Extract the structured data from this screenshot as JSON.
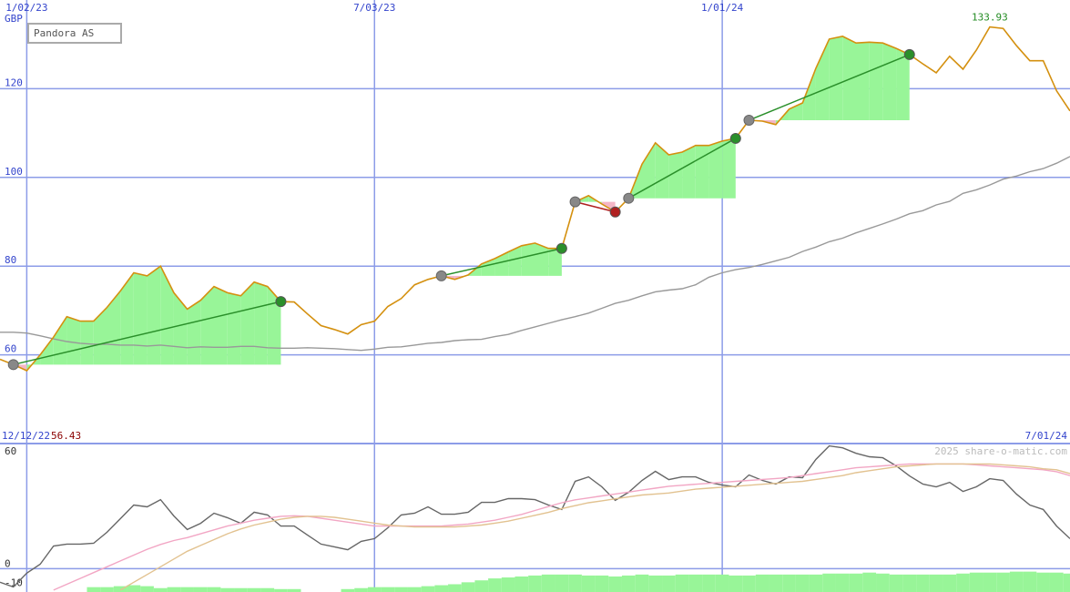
{
  "chart_data": [
    {
      "type": "line",
      "unit": "GBP",
      "categories": [
        null,
        null,
        "1/02/23",
        null,
        null,
        null,
        null,
        null,
        null,
        null,
        null,
        null,
        null,
        null,
        null,
        null,
        null,
        null,
        null,
        null,
        null,
        null,
        null,
        null,
        null,
        null,
        null,
        null,
        "7/03/23",
        null,
        null,
        null,
        null,
        null,
        null,
        null,
        null,
        null,
        null,
        null,
        null,
        null,
        null,
        null,
        null,
        null,
        null,
        null,
        null,
        null,
        null,
        null,
        null,
        null,
        "1/01/24",
        null,
        null,
        null,
        null,
        null,
        null,
        null,
        null,
        null,
        null,
        null,
        null,
        null,
        null,
        null,
        null,
        null,
        null,
        null,
        null,
        null,
        null,
        null,
        null,
        null,
        null
      ],
      "series": [
        {
          "name": "Pandora AS",
          "color": "#d4900f",
          "values": [
            59,
            57.8,
            56.43,
            60,
            64,
            68.6,
            67.6,
            67.6,
            70.7,
            74.4,
            78.5,
            77.8,
            80,
            74,
            70.3,
            72.3,
            75.4,
            74,
            73.3,
            76.4,
            75.4,
            72,
            71.9,
            69.2,
            66.6,
            65.7,
            64.7,
            66.8,
            67.6,
            70.9,
            72.7,
            75.8,
            77,
            77.8,
            77,
            78,
            80.5,
            81.7,
            83.2,
            84.6,
            85.2,
            84,
            84,
            94.5,
            95.9,
            94,
            92.2,
            95.3,
            103,
            107.8,
            105.1,
            105.7,
            107.2,
            107.2,
            108.2,
            108.8,
            112.9,
            112.7,
            111.9,
            115.4,
            116.8,
            124.6,
            131.2,
            131.8,
            130.3,
            130.5,
            130.3,
            129.1,
            127.7,
            125.6,
            123.6,
            127.3,
            124.4,
            128.7,
            133.93,
            133.6,
            129.7,
            126.3,
            126.3,
            119.5,
            115
          ]
        },
        {
          "color": "#999999",
          "values": [
            65.1,
            65.1,
            64.9,
            64.3,
            63.6,
            63.0,
            62.6,
            62.4,
            62.4,
            62.2,
            62.2,
            62.0,
            62.2,
            61.9,
            61.6,
            61.8,
            61.7,
            61.7,
            61.9,
            61.9,
            61.6,
            61.5,
            61.5,
            61.6,
            61.5,
            61.4,
            61.2,
            61.0,
            61.3,
            61.7,
            61.8,
            62.2,
            62.6,
            62.8,
            63.2,
            63.4,
            63.5,
            64.1,
            64.6,
            65.5,
            66.3,
            67.1,
            67.9,
            68.6,
            69.4,
            70.5,
            71.6,
            72.3,
            73.3,
            74.2,
            74.6,
            74.9,
            75.8,
            77.5,
            78.5,
            79.2,
            79.7,
            80.4,
            81.2,
            82.0,
            83.3,
            84.3,
            85.5,
            86.3,
            87.5,
            88.5,
            89.5,
            90.6,
            91.8,
            92.5,
            93.8,
            94.6,
            96.4,
            97.2,
            98.3,
            99.6,
            100.3,
            101.3,
            102.0,
            103.2,
            104.7
          ]
        }
      ],
      "trades": [
        {
          "from": 1,
          "to": 21,
          "entry": 57.8,
          "exit": 72,
          "color": "#2a8f2a"
        },
        {
          "from": 33,
          "to": 42,
          "entry": 77.8,
          "exit": 84,
          "color": "#2a8f2a"
        },
        {
          "from": 43,
          "to": 46,
          "entry": 94.5,
          "exit": 92.2,
          "color": "#b02020"
        },
        {
          "from": 47,
          "to": 55,
          "entry": 95.3,
          "exit": 108.8,
          "color": "#2a8f2a"
        },
        {
          "from": 56,
          "to": 68,
          "entry": 112.9,
          "exit": 127.7,
          "color": "#2a8f2a"
        }
      ],
      "gain_fill": "#98f598",
      "loss_fill": "#f4b6c6",
      "ylim": [
        40,
        140
      ],
      "yticks": [
        60,
        80,
        100,
        120
      ],
      "grid": true,
      "grid_color": "#8c9ce8",
      "high": 133.93,
      "high_color": "#228b22",
      "low": 56.43,
      "low_color": "#8b0000"
    },
    {
      "type": "line",
      "start_label": "12/12/22",
      "end_label": "7/01/24",
      "watermark": "2025 share-o-matic.com",
      "series": [
        {
          "color": "#666666",
          "values": [
            -7,
            -9.4,
            -2.3,
            2.3,
            11.7,
            12.7,
            12.7,
            13.1,
            18.8,
            25.8,
            32.8,
            31.9,
            35.6,
            27.2,
            20.2,
            23.4,
            28.6,
            26.3,
            23.4,
            29.1,
            27.7,
            22,
            22,
            17.3,
            12.7,
            11.3,
            9.8,
            14.1,
            15.5,
            21.1,
            27.7,
            28.6,
            31.9,
            28.1,
            28.1,
            29.1,
            34.2,
            34.2,
            36.1,
            36.1,
            35.6,
            32.8,
            30.5,
            45,
            47.3,
            42.2,
            35.2,
            39.4,
            45.5,
            50.2,
            45.9,
            47.3,
            47.3,
            44.5,
            43.1,
            42.2,
            48.3,
            45.5,
            43.6,
            47.3,
            46.9,
            56.3,
            63.3,
            62.3,
            59.5,
            57.7,
            57.2,
            53,
            47.8,
            43.6,
            42.2,
            44.5,
            39.8,
            42.2,
            46.4,
            45.5,
            38.4,
            32.8,
            30.5,
            22,
            15.5
          ]
        },
        {
          "color": "#f2a6c4",
          "values": [
            null,
            null,
            null,
            null,
            -11,
            -8,
            -5,
            -2,
            1,
            4,
            7,
            10,
            12.5,
            14.5,
            16,
            18,
            20,
            22,
            23.5,
            25,
            26,
            27,
            27.3,
            27,
            26,
            25,
            24,
            23,
            22,
            22,
            22,
            22,
            22,
            22,
            22.5,
            23,
            24,
            25,
            26.5,
            28,
            30,
            32,
            34,
            35.5,
            36.5,
            37.5,
            38.5,
            39.5,
            40.5,
            41.5,
            42.5,
            43,
            43.5,
            44,
            44.5,
            45,
            45.5,
            46,
            46.5,
            47,
            48,
            49,
            50,
            51,
            52,
            52.5,
            53,
            53.5,
            54,
            54,
            54,
            54,
            54,
            53.5,
            53,
            52.5,
            52,
            51.5,
            51,
            50,
            48
          ]
        },
        {
          "color": "#e2c290",
          "values": [
            null,
            null,
            null,
            null,
            null,
            null,
            null,
            null,
            null,
            -11,
            -7,
            -3,
            1,
            5,
            9,
            12,
            15,
            18,
            20.5,
            22.5,
            24,
            25.5,
            26.5,
            27,
            27,
            26.5,
            25.5,
            24.5,
            23.5,
            22.5,
            22,
            21.5,
            21.5,
            21.5,
            21.5,
            22,
            22.5,
            23.5,
            24.5,
            26,
            27.5,
            29,
            31,
            32.5,
            34,
            35,
            36,
            37,
            38,
            38.5,
            39,
            40,
            41,
            41.5,
            42,
            42.5,
            43,
            43.5,
            44,
            44.5,
            45,
            46,
            47,
            48,
            49.5,
            50.5,
            51.5,
            52.5,
            53,
            53.5,
            54,
            54,
            54,
            54,
            54,
            53.5,
            53,
            52.5,
            51.5,
            51,
            49
          ]
        }
      ],
      "bars": {
        "color": "#98f598",
        "values": [
          null,
          null,
          null,
          null,
          null,
          null,
          null,
          -9.5,
          -9.5,
          -9,
          -8.5,
          -9,
          -10,
          -9.5,
          -9.5,
          -9.5,
          -9.5,
          -10,
          -10,
          -10,
          -10,
          -10.5,
          -10.5,
          null,
          null,
          null,
          -10.5,
          -10,
          -9.5,
          -9.5,
          -9.5,
          -9.5,
          -9,
          -8.5,
          -8,
          -7,
          -6,
          -5,
          -4.5,
          -4,
          -3.5,
          -3,
          -3,
          -3,
          -3.5,
          -3.5,
          -4,
          -3.5,
          -3,
          -3.5,
          -3.5,
          -3,
          -3,
          -3,
          -3,
          -3.5,
          -3.5,
          -3,
          -3,
          -3,
          -3,
          -3,
          -2.5,
          -2.5,
          -2.5,
          -2,
          -2.5,
          -3,
          -3,
          -3,
          -3,
          -3,
          -2.5,
          -2,
          -2,
          -2,
          -1.5,
          -1.5,
          -2,
          -2,
          -2.5
        ]
      },
      "ylim": [
        -12,
        64.5
      ],
      "yticks": [
        -10,
        0,
        60
      ]
    }
  ]
}
